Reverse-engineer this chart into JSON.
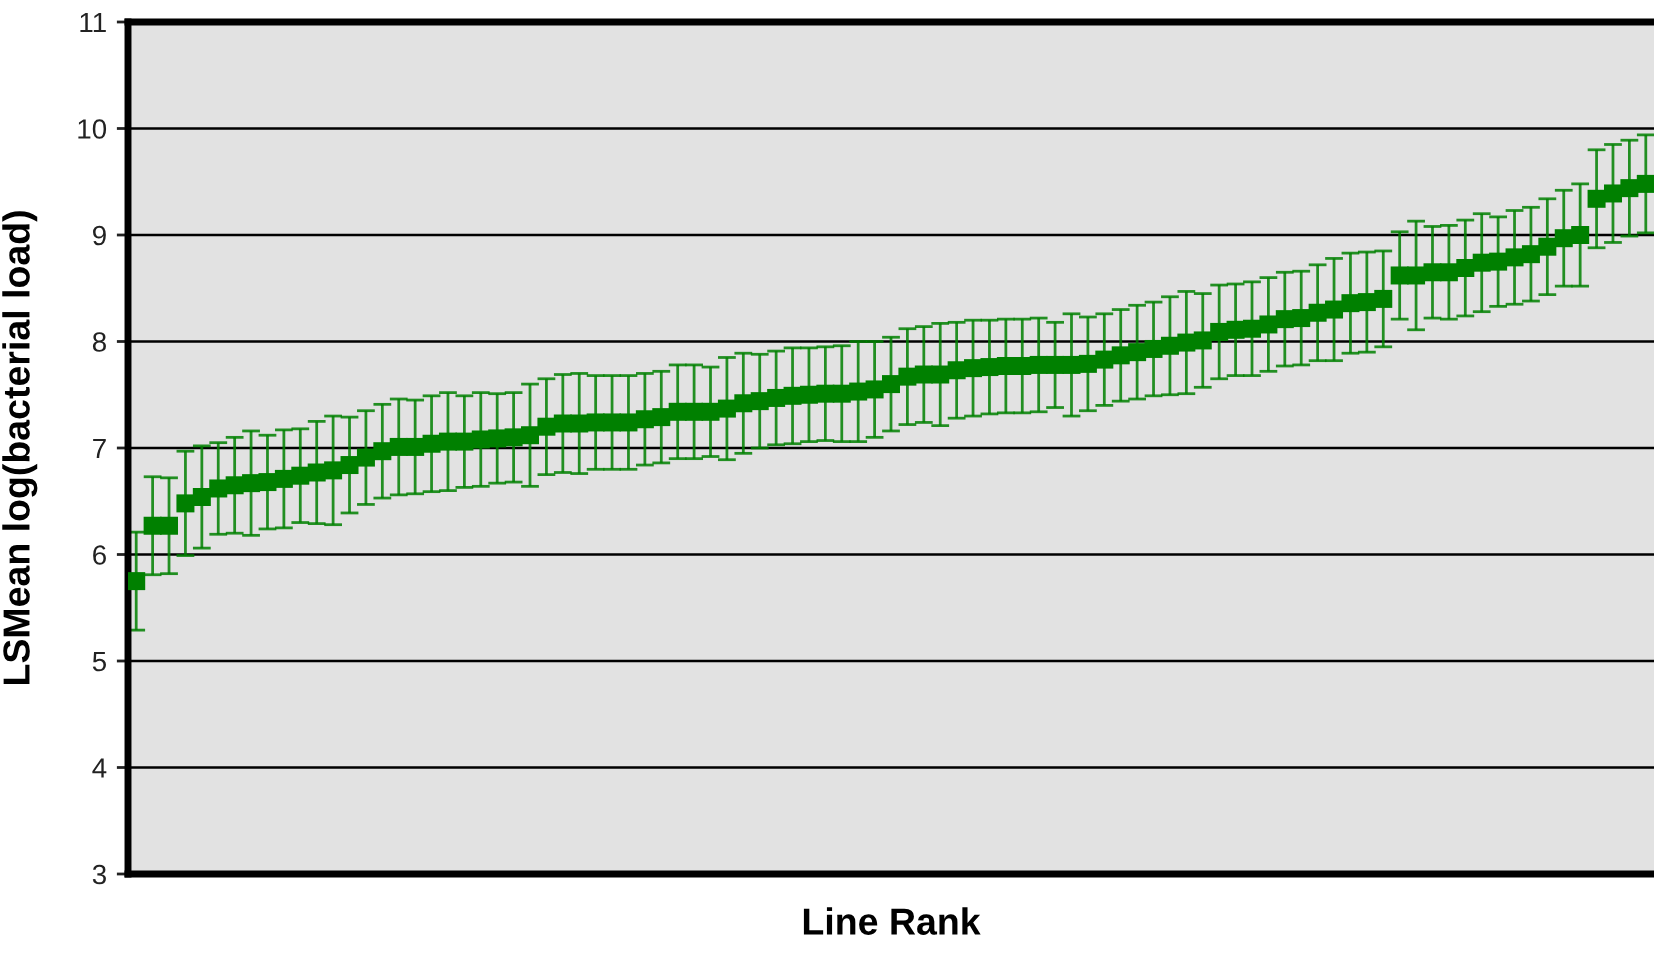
{
  "chart_data": {
    "type": "scatter",
    "xlabel": "Line Rank",
    "ylabel": "LSMean log(bacterial load)",
    "categories": [
      null,
      null,
      null,
      null,
      null,
      null,
      null,
      null,
      null,
      null,
      null,
      null,
      null,
      null,
      null,
      null,
      null,
      null,
      null,
      null,
      null,
      null,
      null,
      null,
      null,
      null,
      null,
      null,
      null,
      null,
      null,
      null,
      null,
      null,
      null,
      null,
      null,
      null,
      null,
      null,
      null,
      null,
      null,
      null,
      null,
      null,
      null,
      null,
      null,
      null,
      null,
      null,
      null,
      null,
      null,
      null,
      null,
      null,
      null,
      null,
      null,
      null,
      null,
      null,
      null,
      null,
      null,
      null,
      null,
      null,
      null,
      null,
      null,
      null,
      null,
      null,
      null,
      null,
      null,
      null,
      null,
      null,
      null,
      null,
      null,
      null,
      null,
      null,
      null,
      null,
      null,
      null,
      null
    ],
    "series": [
      {
        "color": "#008000",
        "values": [
          5.75,
          6.27,
          6.27,
          6.48,
          6.54,
          6.62,
          6.65,
          6.67,
          6.68,
          6.71,
          6.74,
          6.77,
          6.79,
          6.84,
          6.91,
          6.97,
          7.01,
          7.01,
          7.04,
          7.06,
          7.06,
          7.08,
          7.09,
          7.1,
          7.12,
          7.2,
          7.23,
          7.23,
          7.24,
          7.24,
          7.24,
          7.27,
          7.29,
          7.34,
          7.34,
          7.34,
          7.37,
          7.42,
          7.44,
          7.47,
          7.49,
          7.5,
          7.51,
          7.51,
          7.53,
          7.55,
          7.6,
          7.67,
          7.69,
          7.69,
          7.73,
          7.75,
          7.76,
          7.77,
          7.77,
          7.78,
          7.78,
          7.78,
          7.79,
          7.83,
          7.87,
          7.9,
          7.93,
          7.96,
          7.99,
          8.01,
          8.09,
          8.11,
          8.12,
          8.16,
          8.21,
          8.22,
          8.27,
          8.3,
          8.36,
          8.37,
          8.4,
          8.62,
          8.62,
          8.65,
          8.65,
          8.69,
          8.74,
          8.75,
          8.79,
          8.82,
          8.89,
          8.97,
          9.0,
          9.34,
          9.39,
          9.44,
          9.48
        ],
        "errors": [
          0.46,
          0.46,
          0.45,
          0.49,
          0.48,
          0.43,
          0.45,
          0.49,
          0.44,
          0.46,
          0.44,
          0.48,
          0.51,
          0.45,
          0.44,
          0.44,
          0.45,
          0.44,
          0.45,
          0.46,
          0.43,
          0.44,
          0.42,
          0.42,
          0.48,
          0.45,
          0.46,
          0.47,
          0.44,
          0.44,
          0.44,
          0.43,
          0.43,
          0.44,
          0.44,
          0.42,
          0.48,
          0.47,
          0.44,
          0.44,
          0.45,
          0.44,
          0.44,
          0.45,
          0.47,
          0.45,
          0.44,
          0.45,
          0.45,
          0.48,
          0.45,
          0.45,
          0.44,
          0.44,
          0.44,
          0.44,
          0.4,
          0.48,
          0.44,
          0.43,
          0.43,
          0.44,
          0.44,
          0.46,
          0.48,
          0.44,
          0.44,
          0.43,
          0.44,
          0.44,
          0.44,
          0.44,
          0.45,
          0.48,
          0.47,
          0.47,
          0.45,
          0.41,
          0.51,
          0.43,
          0.44,
          0.45,
          0.46,
          0.42,
          0.44,
          0.44,
          0.45,
          0.45,
          0.48,
          0.46,
          0.46,
          0.45,
          0.46
        ]
      }
    ],
    "ylim": [
      3,
      11
    ],
    "yticks": [
      3,
      4,
      5,
      6,
      7,
      8,
      9,
      10,
      11
    ],
    "grid": "y",
    "marker": "square",
    "tick_labels": "y"
  }
}
